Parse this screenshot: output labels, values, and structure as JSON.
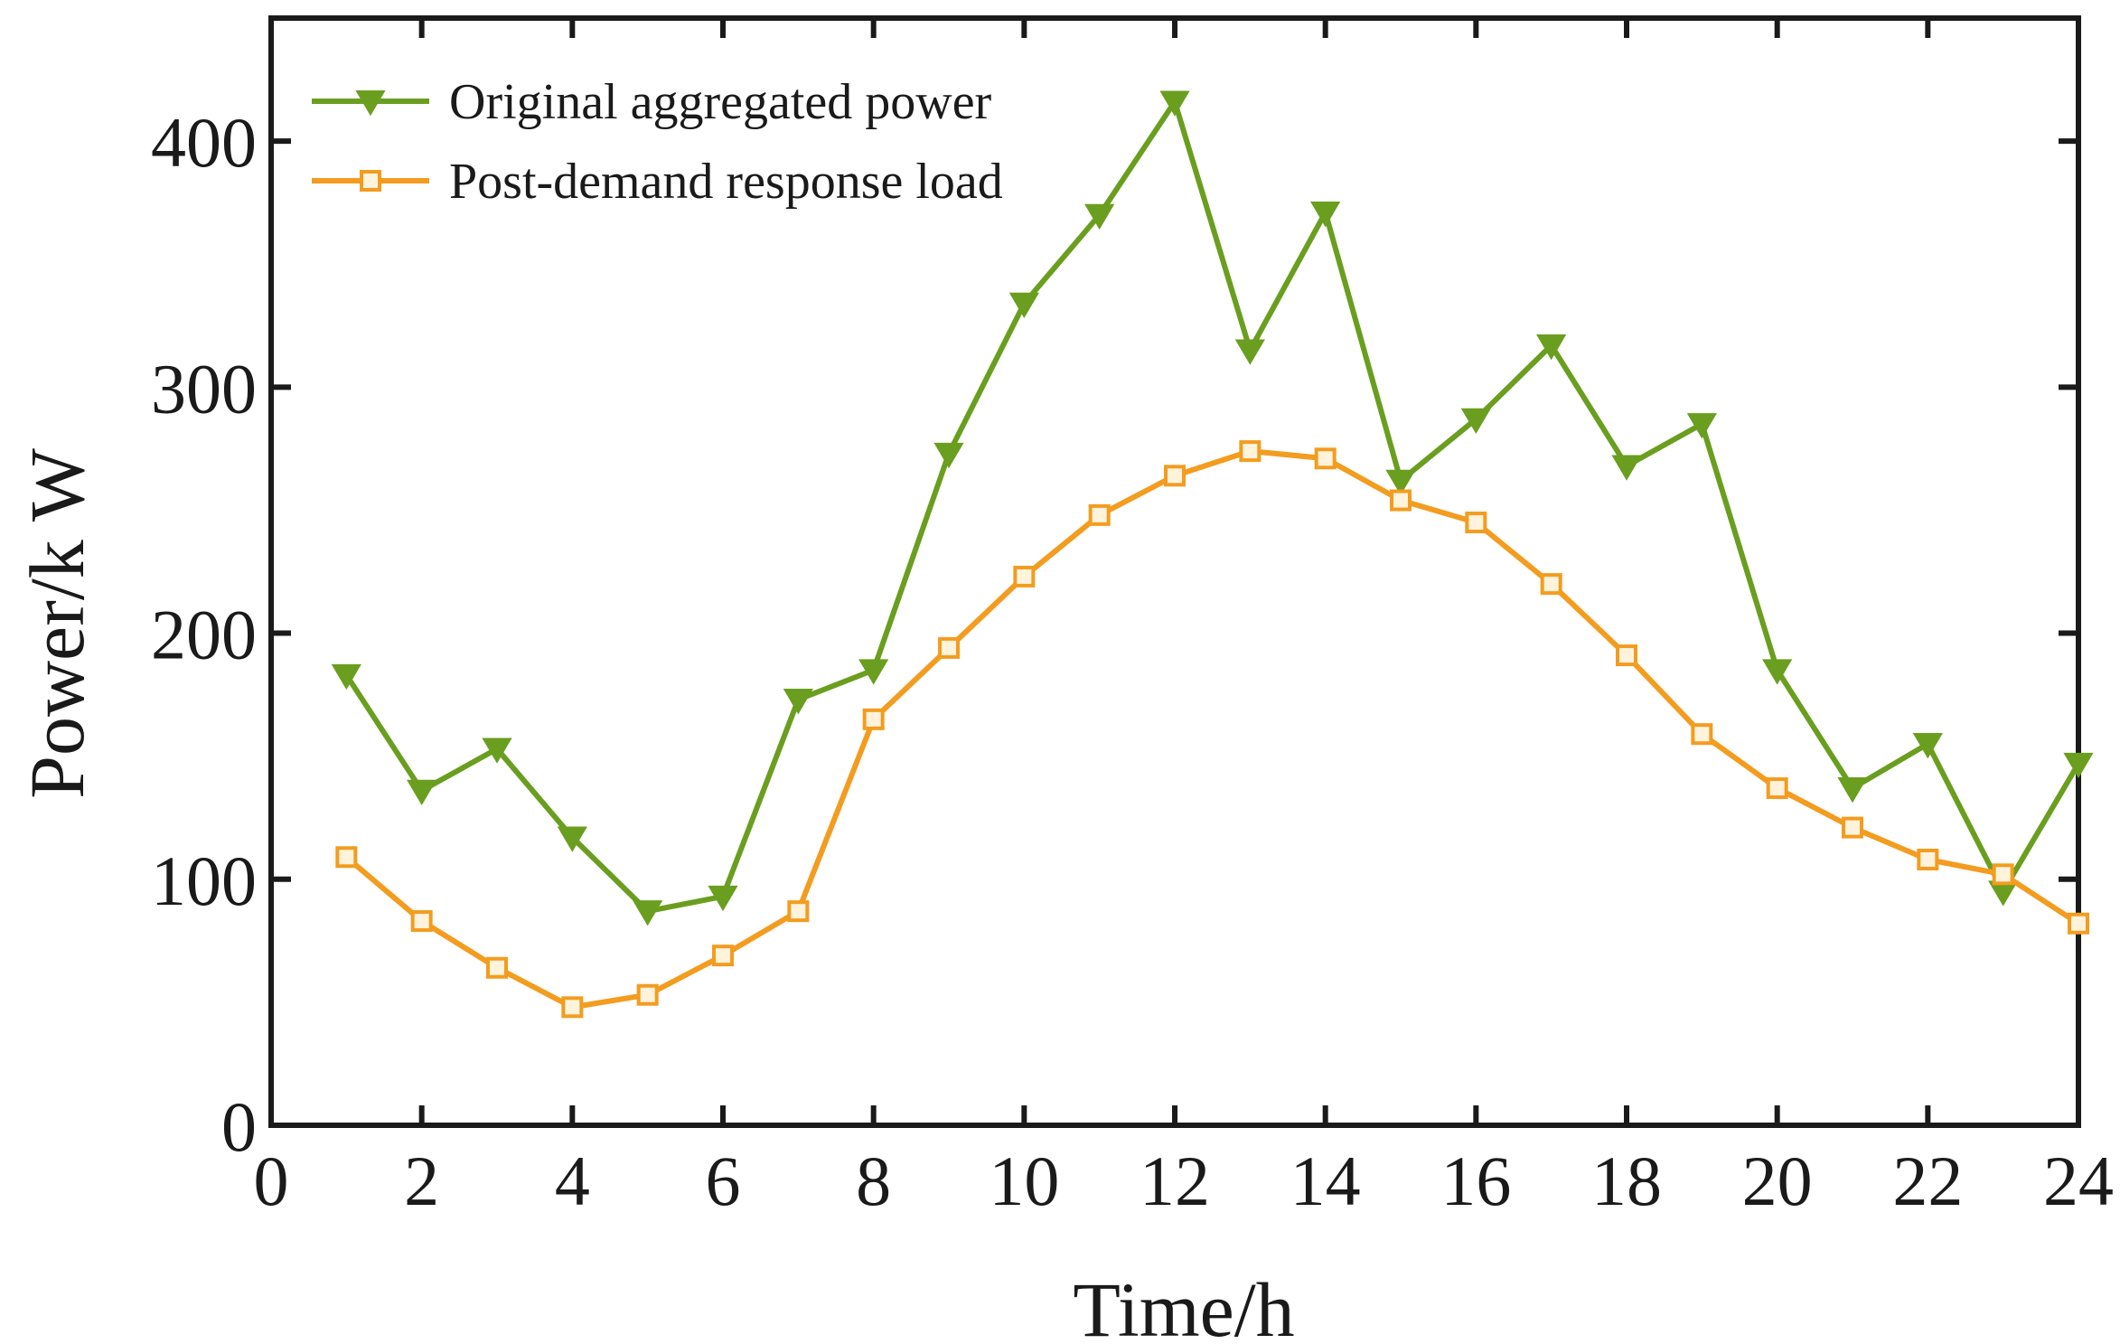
{
  "chart_data": {
    "type": "line",
    "title": "",
    "xlabel": "Time/h",
    "ylabel": "Power/k W",
    "xlim": [
      0,
      24
    ],
    "ylim": [
      0,
      450
    ],
    "xticks": [
      0,
      2,
      4,
      6,
      8,
      10,
      12,
      14,
      16,
      18,
      20,
      22,
      24
    ],
    "yticks": [
      0,
      100,
      200,
      300,
      400
    ],
    "grid": false,
    "legend_position": "top-left",
    "x": [
      1,
      2,
      3,
      4,
      5,
      6,
      7,
      8,
      9,
      10,
      11,
      12,
      13,
      14,
      15,
      16,
      17,
      18,
      19,
      20,
      21,
      22,
      23,
      24
    ],
    "series": [
      {
        "name": "Original aggregated power",
        "color": "#6a9e1f",
        "marker": "triangle-down",
        "values": [
          183,
          136,
          153,
          117,
          87,
          93,
          173,
          185,
          273,
          334,
          370,
          416,
          315,
          371,
          262,
          287,
          317,
          268,
          285,
          185,
          137,
          155,
          95,
          147
        ]
      },
      {
        "name": "Post-demand response load",
        "color": "#f39c1f",
        "marker": "square",
        "values": [
          109,
          83,
          64,
          48,
          53,
          69,
          87,
          165,
          194,
          223,
          248,
          264,
          274,
          271,
          254,
          245,
          220,
          191,
          159,
          137,
          121,
          108,
          102,
          82
        ]
      }
    ]
  }
}
